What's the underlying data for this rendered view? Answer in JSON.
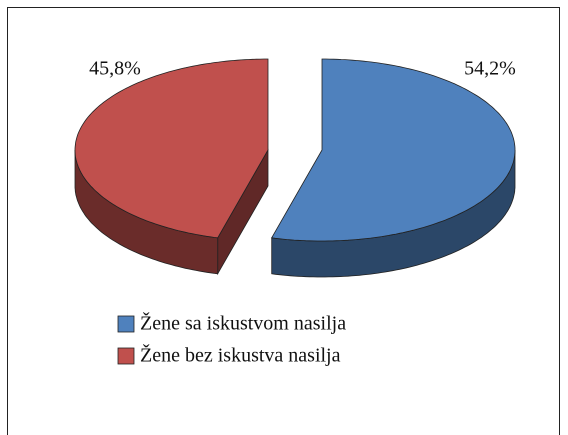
{
  "chart_data": {
    "type": "pie",
    "categories": [
      "Žene sa iskustvom nasilja",
      "Žene bez iskustva nasilja"
    ],
    "values": [
      54.2,
      45.8
    ],
    "value_labels": [
      "54,2%",
      "45,8%"
    ],
    "colors": [
      "#4f81bd",
      "#c0504d"
    ],
    "legend": "bottom"
  }
}
